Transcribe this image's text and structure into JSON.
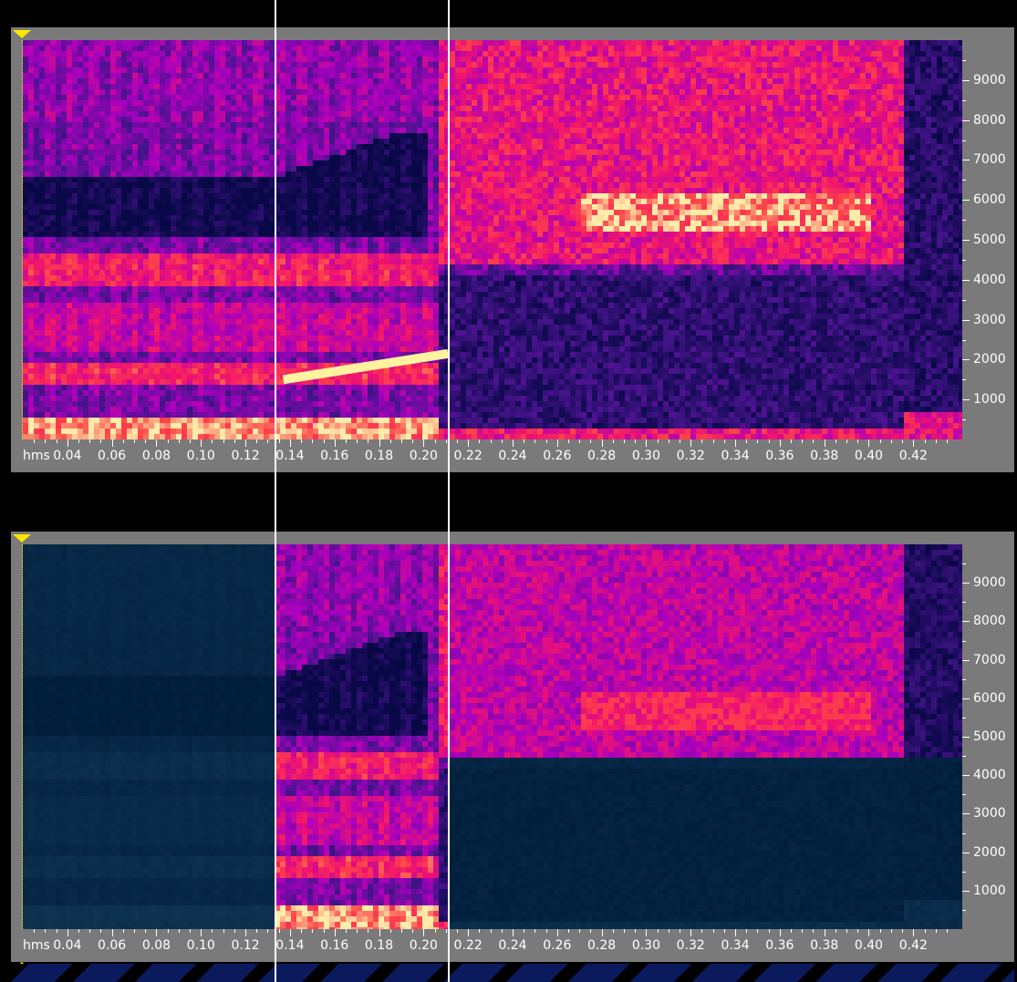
{
  "colors": {
    "panel_bg": "#7a7a7a",
    "marker": "#ffe600",
    "cursor": "#ffffff",
    "spectrum_low": "#0a0a5a",
    "spectrum_mid": "#c000c0",
    "spectrum_high": "#ff3060",
    "spectrum_peak": "#fff0a0"
  },
  "icons": {
    "start_marker": "yellow-triangle-down",
    "end_marker": "yellow-triangle-up"
  },
  "time_axis": {
    "unit": "hms",
    "min": 0.02,
    "max": 0.44,
    "labels": [
      "0.04",
      "0.06",
      "0.08",
      "0.10",
      "0.12",
      "0.14",
      "0.16",
      "0.18",
      "0.20",
      "0.22",
      "0.24",
      "0.26",
      "0.28",
      "0.30",
      "0.32",
      "0.34",
      "0.36",
      "0.38",
      "0.40",
      "0.42"
    ]
  },
  "freq_axis": {
    "min": 0,
    "max": 10000,
    "labels": [
      "1000",
      "2000",
      "3000",
      "4000",
      "5000",
      "6000",
      "7000",
      "8000",
      "9000"
    ]
  },
  "cursors": {
    "start_time": 0.133,
    "end_time": 0.211
  },
  "annotation": {
    "from": [
      0.137,
      1500
    ],
    "to": [
      0.211,
      2150
    ]
  }
}
